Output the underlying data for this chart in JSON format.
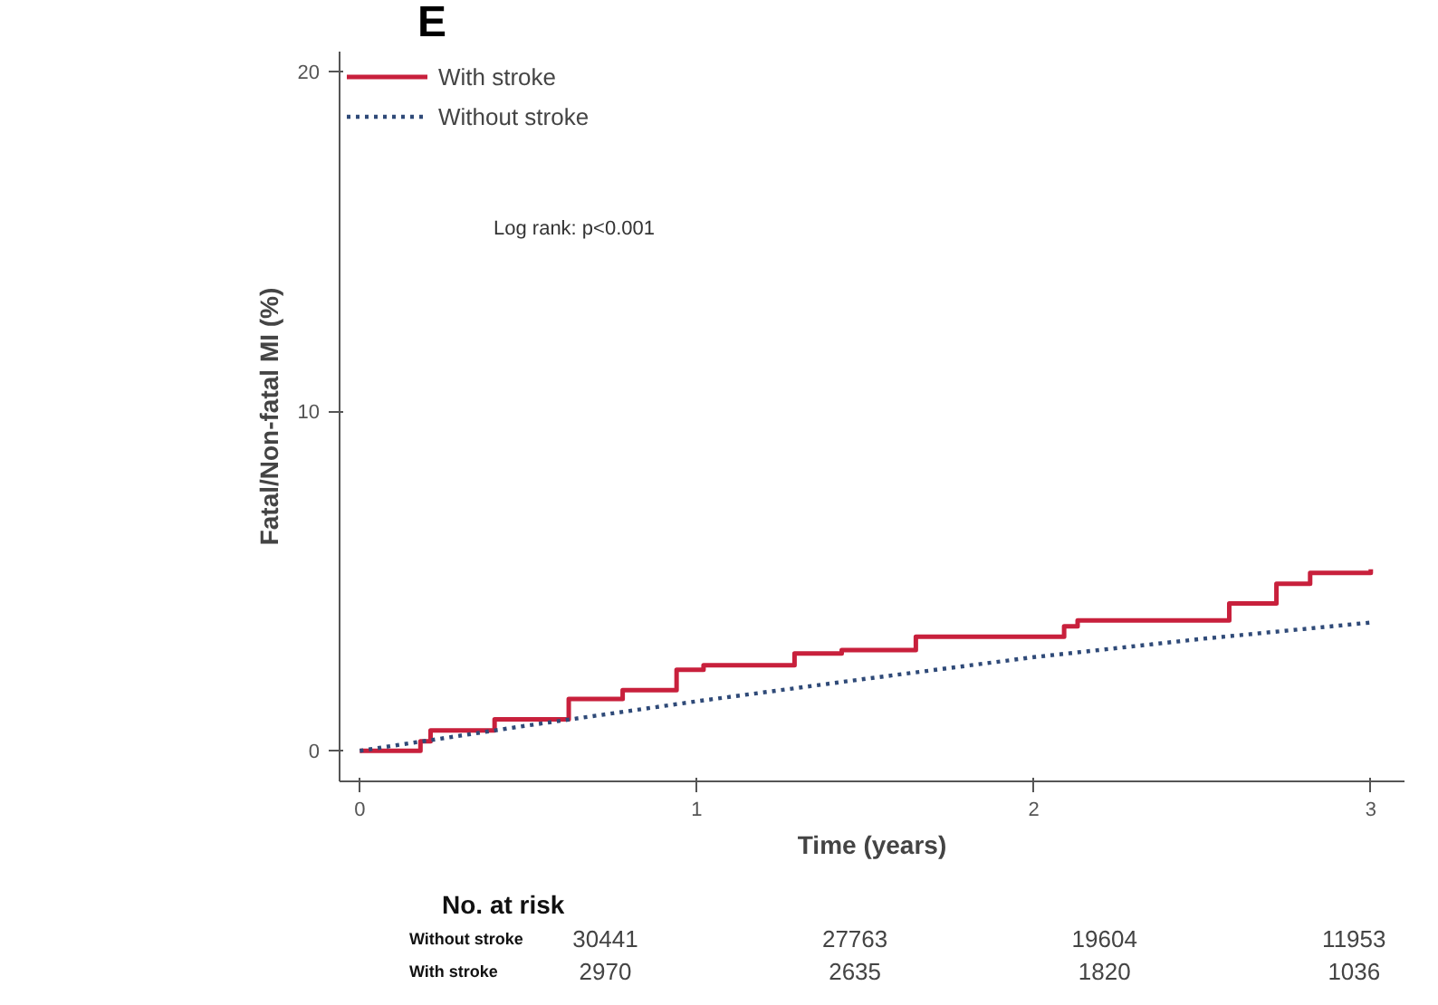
{
  "chart_data": {
    "type": "step",
    "xlabel": "Time (years)",
    "ylabel": "Fatal/Non-fatal MI (%)",
    "xlim": [
      -0.06,
      3.1
    ],
    "ylim": [
      -0.9,
      20.6
    ],
    "xticks": [
      0,
      1,
      2,
      3
    ],
    "yticks": [
      0,
      10,
      20
    ],
    "grid": false,
    "legend": "top left",
    "series": [
      {
        "name": "With stroke",
        "color": "#c8203c",
        "line_style": "solid",
        "x": [
          0,
          0.18,
          0.21,
          0.4,
          0.62,
          0.78,
          0.94,
          1.02,
          1.29,
          1.43,
          1.65,
          2.09,
          2.13,
          2.58,
          2.72,
          2.82,
          3.0
        ],
        "values": [
          0,
          0.28,
          0.6,
          0.93,
          1.53,
          1.79,
          2.39,
          2.52,
          2.87,
          2.97,
          3.36,
          3.67,
          3.84,
          4.34,
          4.92,
          5.24,
          5.35
        ]
      },
      {
        "name": "Without stroke",
        "color": "#2f4a78",
        "type": "line",
        "line_style": "dotted",
        "x": [
          0,
          0.5,
          1,
          1.5,
          2,
          2.5,
          3
        ],
        "values": [
          0,
          0.75,
          1.46,
          2.12,
          2.76,
          3.3,
          3.78
        ]
      }
    ],
    "annotations": [
      "E",
      "Log rank: p<0.001",
      "No. at risk",
      "Without stroke",
      "30441",
      "27763",
      "19604",
      "11953",
      "With stroke",
      "2970",
      "2635",
      "1820",
      "1036"
    ]
  }
}
